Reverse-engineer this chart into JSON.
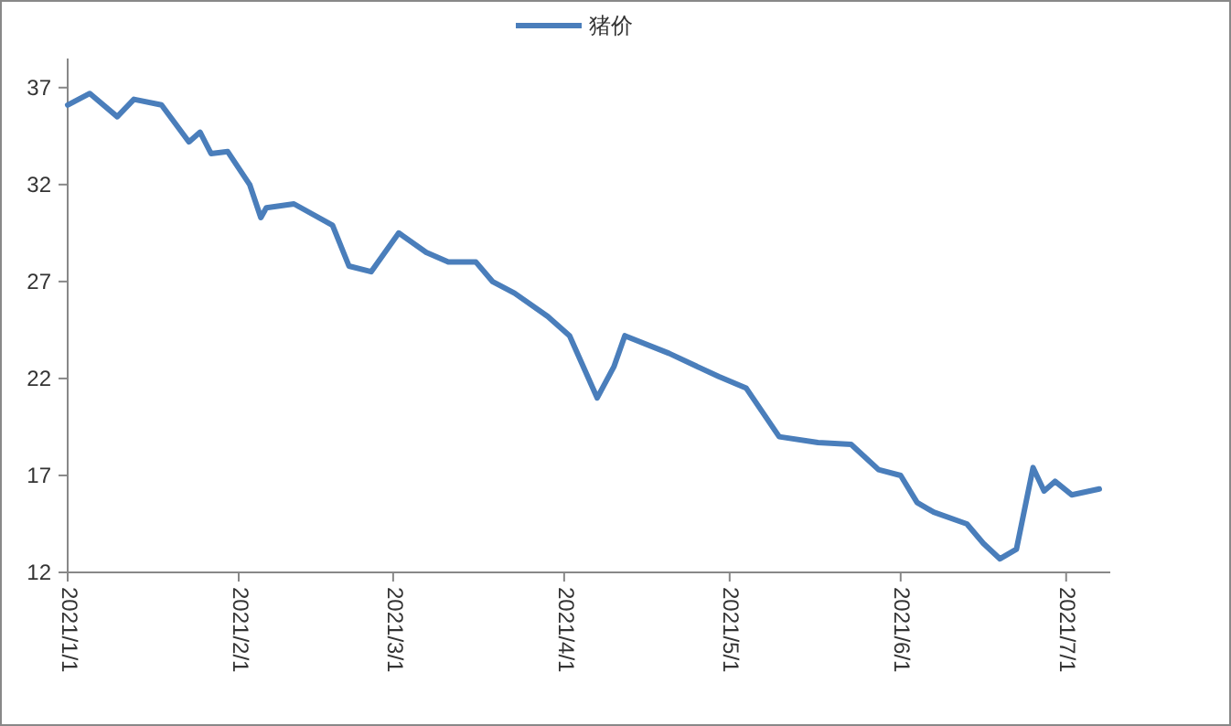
{
  "chart_data": {
    "type": "line",
    "x": [
      "2021-01-01",
      "2021-01-05",
      "2021-01-10",
      "2021-01-13",
      "2021-01-18",
      "2021-01-23",
      "2021-01-25",
      "2021-01-27",
      "2021-01-30",
      "2021-02-03",
      "2021-02-05",
      "2021-02-06",
      "2021-02-11",
      "2021-02-18",
      "2021-02-21",
      "2021-02-25",
      "2021-03-02",
      "2021-03-07",
      "2021-03-11",
      "2021-03-16",
      "2021-03-19",
      "2021-03-23",
      "2021-03-29",
      "2021-04-02",
      "2021-04-07",
      "2021-04-10",
      "2021-04-12",
      "2021-04-20",
      "2021-04-29",
      "2021-05-04",
      "2021-05-10",
      "2021-05-17",
      "2021-05-23",
      "2021-05-28",
      "2021-06-01",
      "2021-06-04",
      "2021-06-07",
      "2021-06-13",
      "2021-06-16",
      "2021-06-19",
      "2021-06-22",
      "2021-06-25",
      "2021-06-27",
      "2021-06-29",
      "2021-07-02",
      "2021-07-07"
    ],
    "series": [
      {
        "name": "猪价",
        "color": "#4a7ebb",
        "values": [
          36.1,
          36.7,
          35.5,
          36.4,
          36.1,
          34.2,
          34.7,
          33.6,
          33.7,
          32.0,
          30.3,
          30.8,
          31.0,
          29.9,
          27.8,
          27.5,
          29.5,
          28.5,
          28.0,
          28.0,
          27.0,
          26.4,
          25.2,
          24.2,
          21.0,
          22.6,
          24.2,
          23.3,
          22.1,
          21.5,
          19.0,
          18.7,
          18.6,
          17.3,
          17.0,
          15.6,
          15.1,
          14.5,
          13.5,
          12.7,
          13.2,
          17.4,
          16.2,
          16.7,
          16.0,
          16.3
        ]
      }
    ],
    "xlim": [
      "2021-01-01",
      "2021-07-09"
    ],
    "xticks": [
      {
        "value": "2021-01-01",
        "label": "2021/1/1"
      },
      {
        "value": "2021-02-01",
        "label": "2021/2/1"
      },
      {
        "value": "2021-03-01",
        "label": "2021/3/1"
      },
      {
        "value": "2021-04-01",
        "label": "2021/4/1"
      },
      {
        "value": "2021-05-01",
        "label": "2021/5/1"
      },
      {
        "value": "2021-06-01",
        "label": "2021/6/1"
      },
      {
        "value": "2021-07-01",
        "label": "2021/7/1"
      }
    ],
    "ylim": [
      12,
      38.5
    ],
    "yticks": [
      12,
      17,
      22,
      27,
      32,
      37
    ],
    "legend": "top",
    "grid": false
  }
}
